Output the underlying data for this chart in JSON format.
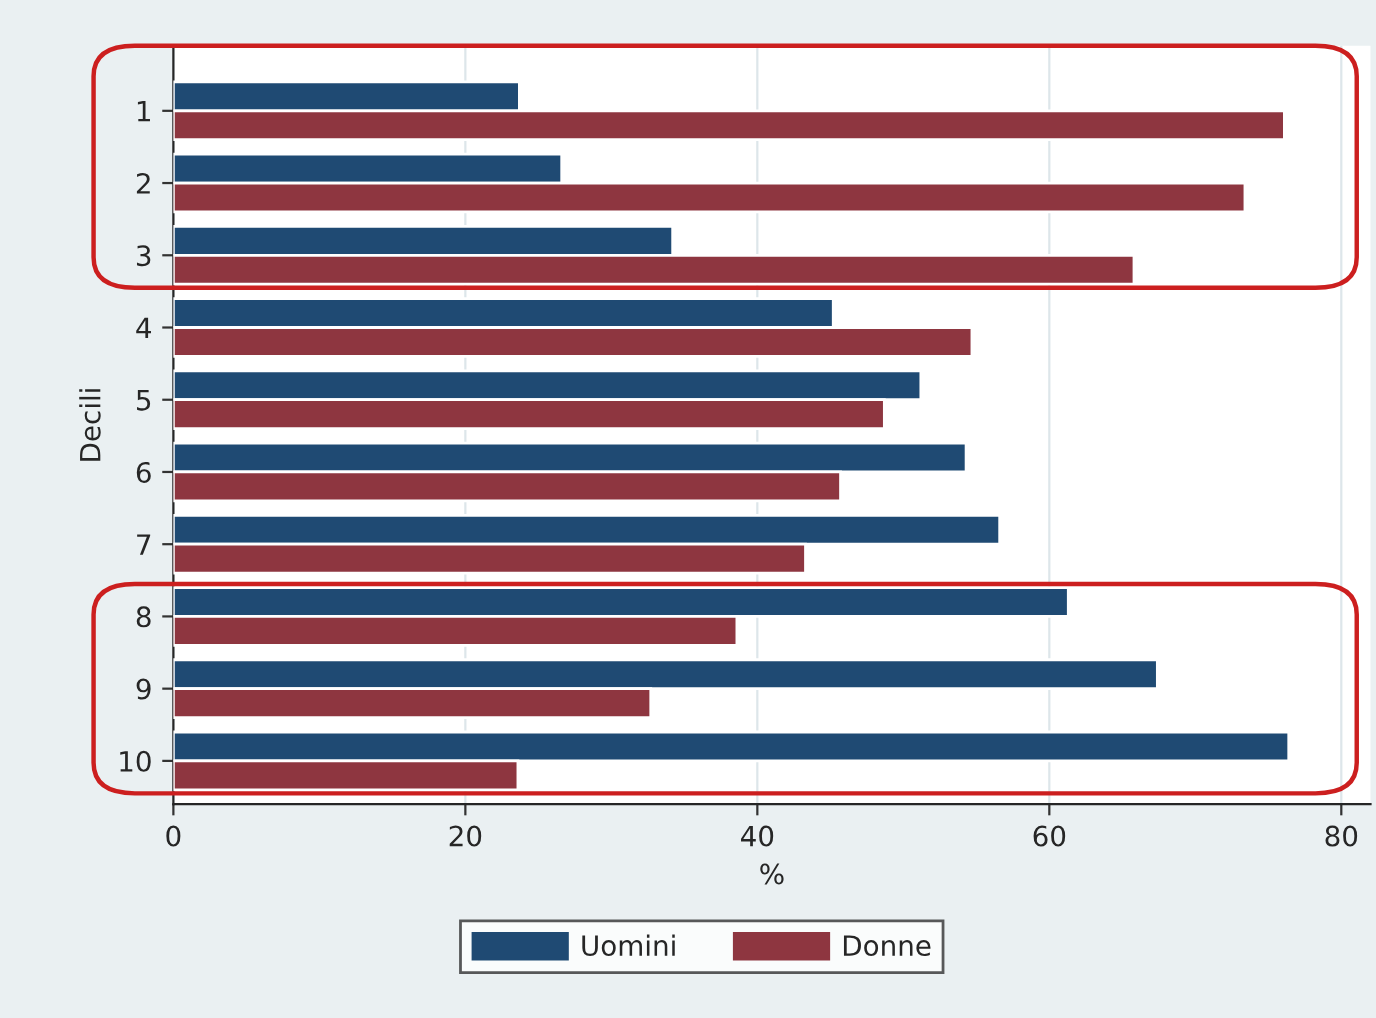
{
  "chart_data": {
    "type": "bar",
    "orientation": "horizontal",
    "ylabel": "Decili",
    "xlabel": "%",
    "categories": [
      "1",
      "2",
      "3",
      "4",
      "5",
      "6",
      "7",
      "8",
      "9",
      "10"
    ],
    "series": [
      {
        "name": "Uomini",
        "color": "#1f4a73",
        "values": [
          23.7,
          26.6,
          34.2,
          45.2,
          51.2,
          54.3,
          56.6,
          61.3,
          67.4,
          76.4
        ]
      },
      {
        "name": "Donne",
        "color": "#8e3640",
        "values": [
          76.1,
          73.4,
          65.8,
          54.7,
          48.7,
          45.7,
          43.3,
          38.6,
          32.7,
          23.6
        ]
      }
    ],
    "xlim": [
      0,
      82
    ],
    "xticks": [
      0,
      20,
      40,
      60,
      80
    ],
    "grid": "x",
    "legend": "bottom"
  }
}
